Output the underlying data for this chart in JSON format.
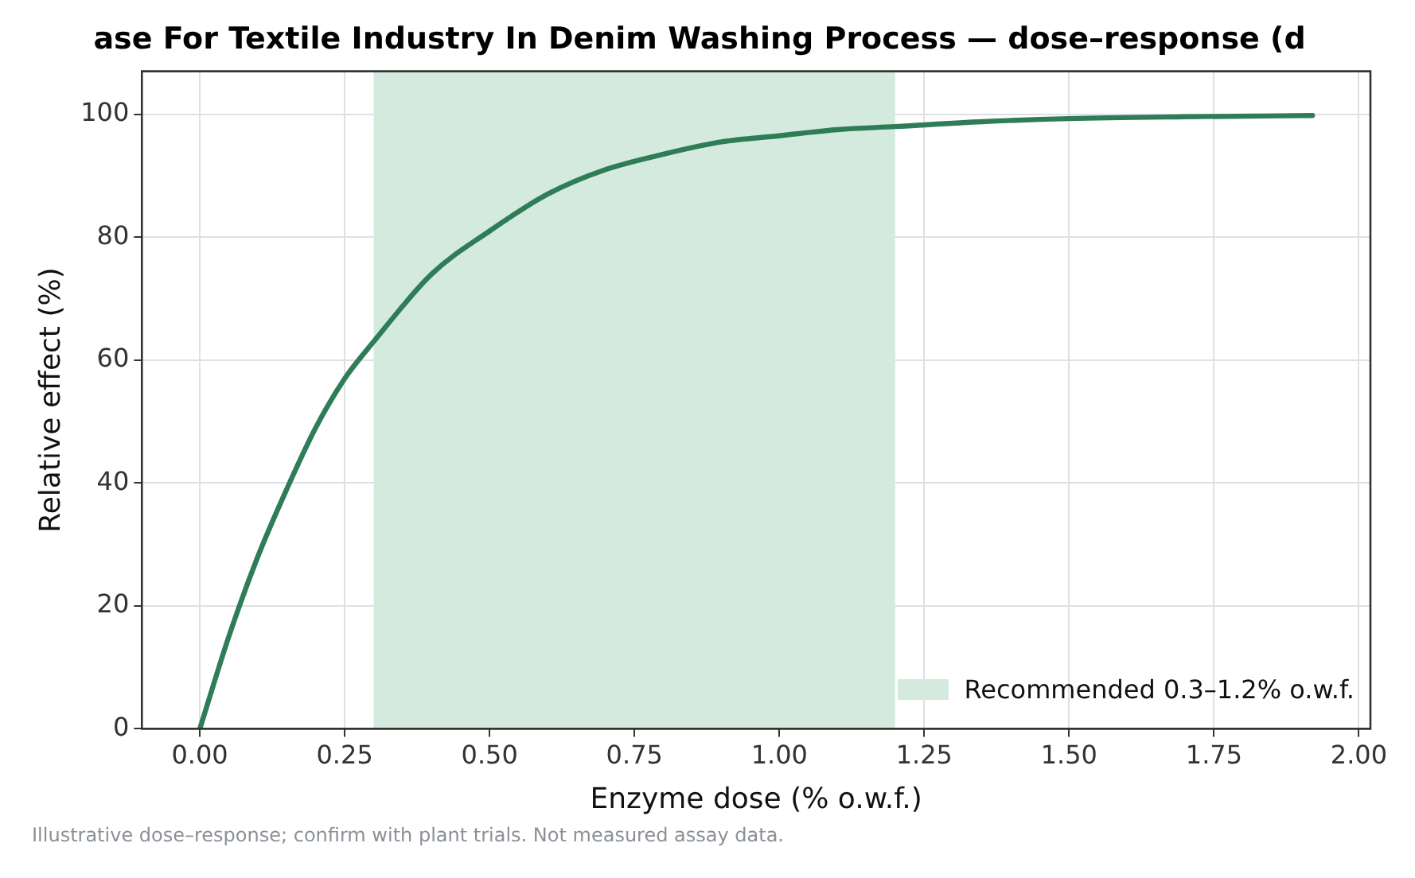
{
  "chart_data": {
    "type": "line",
    "title": "ase For Textile Industry In Denim Washing Process — dose–response (d",
    "xlabel": "Enzyme dose (% o.w.f.)",
    "ylabel": "Relative effect (%)",
    "x": [
      0,
      0.05,
      0.1,
      0.15,
      0.2,
      0.25,
      0.3,
      0.4,
      0.5,
      0.6,
      0.7,
      0.8,
      0.9,
      1.0,
      1.1,
      1.2,
      1.35,
      1.5,
      1.7,
      1.92
    ],
    "series": [
      {
        "color": "#2e7d57",
        "values": [
          0,
          15,
          28,
          39,
          49,
          57,
          63,
          74,
          81,
          87,
          91,
          93.5,
          95.5,
          96.5,
          97.5,
          98,
          98.8,
          99.3,
          99.6,
          99.8
        ]
      }
    ],
    "xlim": [
      -0.1,
      2.02
    ],
    "xticks": [
      {
        "value": 0,
        "label": "0.00"
      },
      {
        "value": 0.25,
        "label": "0.25"
      },
      {
        "value": 0.5,
        "label": "0.50"
      },
      {
        "value": 0.75,
        "label": "0.75"
      },
      {
        "value": 1,
        "label": "1.00"
      },
      {
        "value": 1.25,
        "label": "1.25"
      },
      {
        "value": 1.5,
        "label": "1.50"
      },
      {
        "value": 1.75,
        "label": "1.75"
      },
      {
        "value": 2,
        "label": "2.00"
      }
    ],
    "ylim": [
      0,
      107
    ],
    "yticks": [
      0,
      20,
      40,
      60,
      80,
      100
    ],
    "bands": [
      {
        "axis": "x",
        "from": 0.3,
        "to": 1.2,
        "label": "Recommended 0.3–1.2% o.w.f.",
        "color": "#d5eadf"
      }
    ],
    "annotations": [
      "Illustrative dose–response; confirm with plant trials. Not measured assay data."
    ],
    "grid": true,
    "legend": "bottom right",
    "marker": "none",
    "line_style": "solid"
  }
}
